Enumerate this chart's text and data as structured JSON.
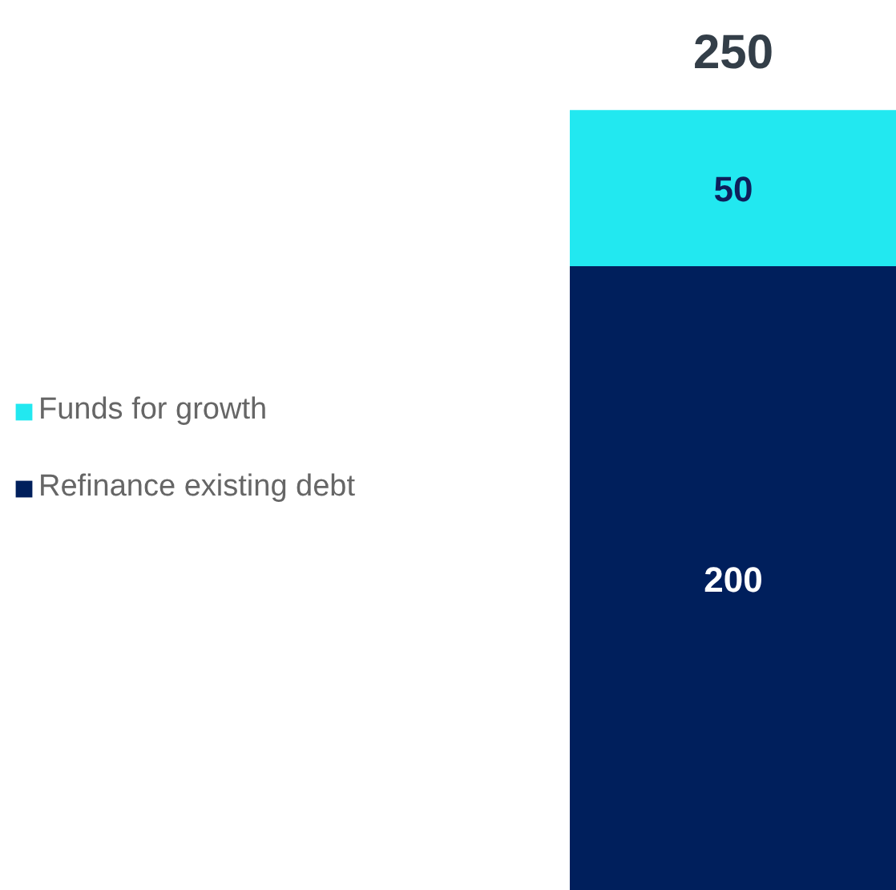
{
  "chart_data": {
    "type": "bar",
    "categories": [
      null
    ],
    "stacked": true,
    "data_labels": true,
    "legend": "left",
    "totals": [
      "250"
    ],
    "series": [
      {
        "name": "Refinance existing debt",
        "color": "#001f5c",
        "values": [
          200
        ]
      },
      {
        "name": "Funds for growth",
        "color": "#22e8f0",
        "values": [
          50
        ]
      }
    ]
  }
}
